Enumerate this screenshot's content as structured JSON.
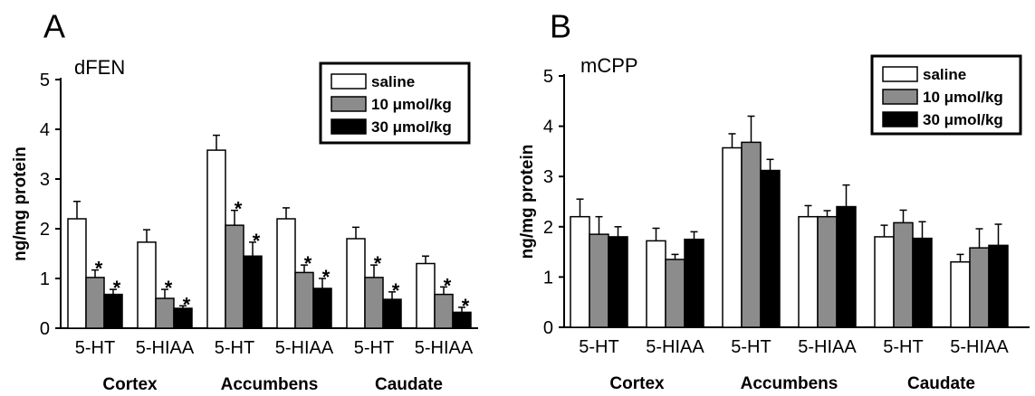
{
  "colors": {
    "saline": "#ffffff",
    "10": "#8c8c8c",
    "30": "#000000"
  },
  "chart_data": [
    {
      "type": "bar",
      "panel": "A",
      "title": "dFEN",
      "ylabel": "ng/mg protein",
      "ylim": [
        0,
        5
      ],
      "yticks": [
        "0",
        "1",
        "2",
        "3",
        "4",
        "5"
      ],
      "categories": [
        "5-HT",
        "5-HIAA",
        "5-HT",
        "5-HIAA",
        "5-HT",
        "5-HIAA"
      ],
      "groups": [
        "Cortex",
        "Accumbens",
        "Caudate"
      ],
      "legend_position": "top-right",
      "series": [
        {
          "name": "saline",
          "values": [
            2.2,
            1.73,
            3.58,
            2.2,
            1.8,
            1.3
          ],
          "errors": [
            0.35,
            0.25,
            0.3,
            0.22,
            0.23,
            0.15
          ],
          "sig": [
            false,
            false,
            false,
            false,
            false,
            false
          ]
        },
        {
          "name": "10 μmol/kg",
          "values": [
            1.02,
            0.6,
            2.07,
            1.12,
            1.02,
            0.68
          ],
          "errors": [
            0.15,
            0.18,
            0.3,
            0.15,
            0.25,
            0.15
          ],
          "sig": [
            true,
            true,
            true,
            true,
            true,
            true
          ]
        },
        {
          "name": "30 μmol/kg",
          "values": [
            0.68,
            0.4,
            1.45,
            0.8,
            0.58,
            0.32
          ],
          "errors": [
            0.1,
            0.05,
            0.28,
            0.2,
            0.15,
            0.1
          ],
          "sig": [
            true,
            true,
            true,
            true,
            true,
            true
          ]
        }
      ],
      "sig_marker": "*"
    },
    {
      "type": "bar",
      "panel": "B",
      "title": "mCPP",
      "ylabel": "ng/mg protein",
      "ylim": [
        0,
        5
      ],
      "yticks": [
        "0",
        "1",
        "2",
        "3",
        "4",
        "5"
      ],
      "categories": [
        "5-HT",
        "5-HIAA",
        "5-HT",
        "5-HIAA",
        "5-HT",
        "5-HIAA"
      ],
      "groups": [
        "Cortex",
        "Accumbens",
        "Caudate"
      ],
      "legend_position": "top-right",
      "series": [
        {
          "name": "saline",
          "values": [
            2.2,
            1.72,
            3.57,
            2.2,
            1.8,
            1.3
          ],
          "errors": [
            0.35,
            0.25,
            0.28,
            0.22,
            0.23,
            0.15
          ],
          "sig": [
            false,
            false,
            false,
            false,
            false,
            false
          ]
        },
        {
          "name": "10 μmol/kg",
          "values": [
            1.85,
            1.35,
            3.68,
            2.2,
            2.08,
            1.58
          ],
          "errors": [
            0.35,
            0.1,
            0.52,
            0.12,
            0.25,
            0.38
          ],
          "sig": [
            false,
            false,
            false,
            false,
            false,
            false
          ]
        },
        {
          "name": "30 μmol/kg",
          "values": [
            1.8,
            1.75,
            3.12,
            2.4,
            1.77,
            1.63
          ],
          "errors": [
            0.2,
            0.15,
            0.22,
            0.43,
            0.33,
            0.42
          ],
          "sig": [
            false,
            false,
            false,
            false,
            false,
            false
          ]
        }
      ],
      "sig_marker": "*"
    }
  ]
}
